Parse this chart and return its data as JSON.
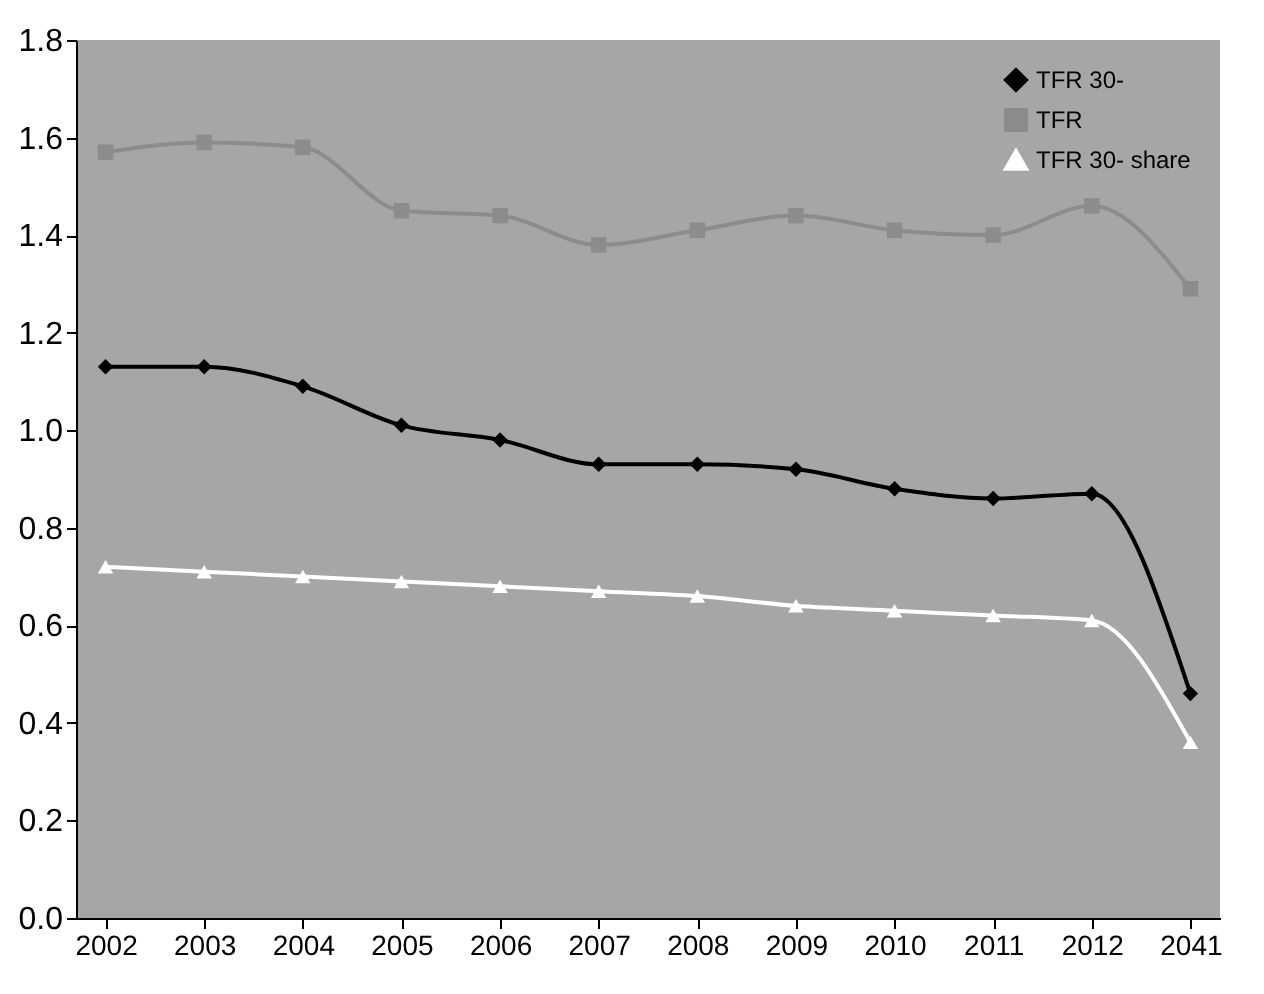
{
  "chart_data": {
    "type": "line",
    "categories": [
      "2002",
      "2003",
      "2004",
      "2005",
      "2006",
      "2007",
      "2008",
      "2009",
      "2010",
      "2011",
      "2012",
      "2041"
    ],
    "series": [
      {
        "name": "TFR 30-",
        "color": "#000000",
        "marker": "diamond",
        "values": [
          1.13,
          1.13,
          1.09,
          1.01,
          0.98,
          0.93,
          0.93,
          0.92,
          0.88,
          0.86,
          0.87,
          0.46
        ]
      },
      {
        "name": "TFR",
        "color": "#8c8c8c",
        "marker": "square",
        "values": [
          1.57,
          1.59,
          1.58,
          1.45,
          1.44,
          1.38,
          1.41,
          1.44,
          1.41,
          1.4,
          1.46,
          1.29
        ]
      },
      {
        "name": "TFR 30- share",
        "color": "#ffffff",
        "marker": "triangle",
        "values": [
          0.72,
          0.71,
          0.7,
          0.69,
          0.68,
          0.67,
          0.66,
          0.64,
          0.63,
          0.62,
          0.61,
          0.36
        ]
      }
    ],
    "ylim": [
      0,
      1.8
    ],
    "yticks": [
      {
        "value": 0,
        "label": "0.0"
      },
      0.2,
      0.4,
      0.6,
      0.8,
      {
        "value": 1,
        "label": "1.0"
      },
      1.2,
      1.4,
      1.6,
      1.8
    ],
    "legend": "top right",
    "line_style": "solid"
  }
}
